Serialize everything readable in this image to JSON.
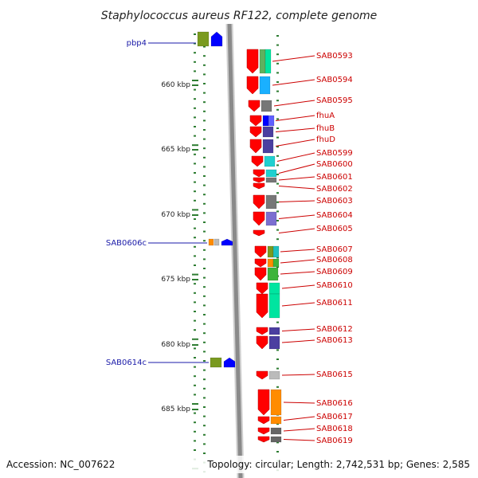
{
  "title": "Staphylococcus aureus RF122, complete genome",
  "footer": {
    "accession": "Accession: NC_007622",
    "stats": "Topology: circular; Length: 2,742,531 bp; Genes: 2,585"
  },
  "colors": {
    "forward_gene": "#ff0000",
    "left_label": "#1a1aa8",
    "right_label": "#cc0000",
    "tick": "#2e7d32",
    "backbone": "#8a8a8a"
  },
  "scale": {
    "labels": [
      "660 kbp",
      "665 kbp",
      "670 kbp",
      "675 kbp",
      "680 kbp",
      "685 kbp"
    ]
  },
  "right_genes": [
    {
      "label": "SAB0593",
      "cog": [
        "#5fb15f",
        "#00e5a0"
      ]
    },
    {
      "label": "SAB0594",
      "cog": [
        "#1ab0ff"
      ]
    },
    {
      "label": "SAB0595",
      "cog": [
        "#777777"
      ]
    },
    {
      "label": "fhuA",
      "cog": [
        "#0000ff",
        "#6060ff"
      ]
    },
    {
      "label": "fhuB",
      "cog": [
        "#4b3fa0"
      ]
    },
    {
      "label": "fhuD",
      "cog": [
        "#4b3fa0"
      ]
    },
    {
      "label": "SAB0599",
      "cog": [
        "#1fd0d0"
      ]
    },
    {
      "label": "SAB0600",
      "cog": [
        "#1fd0d0"
      ]
    },
    {
      "label": "SAB0601",
      "cog": [
        "#777777"
      ]
    },
    {
      "label": "SAB0602",
      "cog": []
    },
    {
      "label": "SAB0603",
      "cog": [
        "#777777"
      ]
    },
    {
      "label": "SAB0604",
      "cog": [
        "#7b6fd0"
      ]
    },
    {
      "label": "SAB0605",
      "cog": []
    },
    {
      "label": "SAB0607",
      "cog": [
        "#7a9a20",
        "#20c0c0"
      ]
    },
    {
      "label": "SAB0608",
      "cog": [
        "#ff8c00",
        "#3cb43c"
      ]
    },
    {
      "label": "SAB0609",
      "cog": [
        "#3cb43c"
      ]
    },
    {
      "label": "SAB0610",
      "cog": [
        "#00e5a0"
      ]
    },
    {
      "label": "SAB0611",
      "cog": [
        "#00e5a0"
      ]
    },
    {
      "label": "SAB0612",
      "cog": [
        "#4b3fa0"
      ]
    },
    {
      "label": "SAB0613",
      "cog": [
        "#4b3fa0"
      ]
    },
    {
      "label": "SAB0615",
      "cog": [
        "#bbbbbb"
      ]
    },
    {
      "label": "SAB0616",
      "cog": [
        "#ff8c00"
      ]
    },
    {
      "label": "SAB0617",
      "cog": [
        "#ff8c00"
      ]
    },
    {
      "label": "SAB0618",
      "cog": [
        "#666666"
      ]
    },
    {
      "label": "SAB0619",
      "cog": [
        "#666666"
      ]
    }
  ],
  "left_genes": [
    {
      "label": "pbp4",
      "cog": [
        "#7a9a20",
        "#0000ff"
      ]
    },
    {
      "label": "SAB0606c",
      "cog": [
        "#ff8c00",
        "#bbbbbb",
        "#0000ff"
      ]
    },
    {
      "label": "SAB0614c",
      "cog": [
        "#7a9a20",
        "#0000ff"
      ]
    }
  ]
}
